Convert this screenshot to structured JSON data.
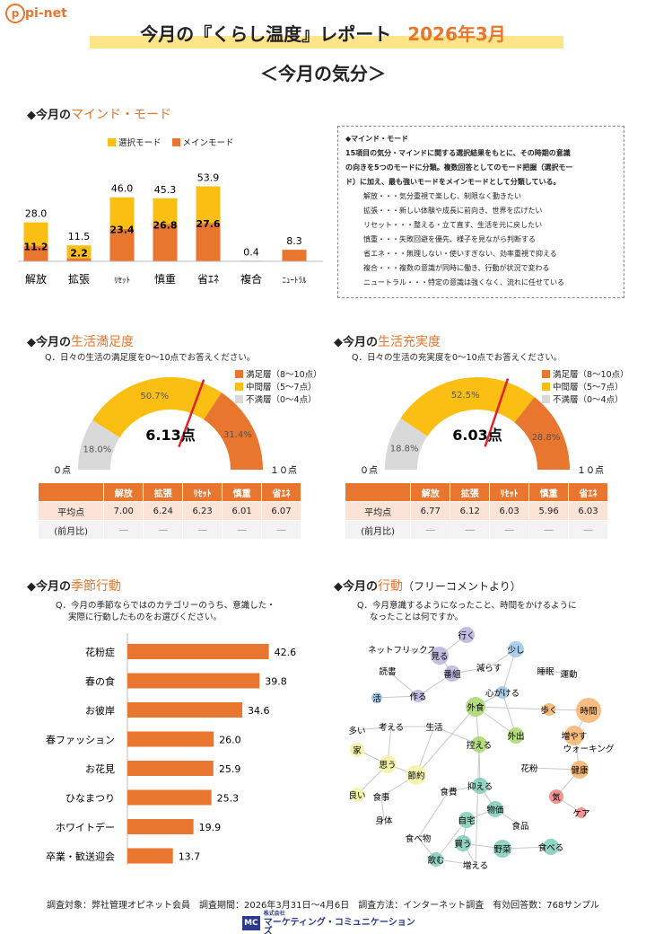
{
  "logo": "pi-net",
  "header": {
    "title": "今月の『くらし温度』レポート",
    "month": "2026年3月",
    "subtitle": "＜今月の気分＞"
  },
  "mind": {
    "heading_prefix": "◆今月の",
    "heading_hl": "マインド・モード",
    "legend": [
      "選択モード",
      "メインモード"
    ],
    "colors": {
      "select": "#fbbf14",
      "main": "#e8762f"
    }
  },
  "chart_data": [
    {
      "type": "bar",
      "stacked": true,
      "categories": [
        "解放",
        "拡張",
        "ﾘｾｯﾄ",
        "慎重",
        "省ｴﾈ",
        "複合",
        "ﾆｭｰﾄﾗﾙ"
      ],
      "series": [
        {
          "name": "メインモード",
          "values": [
            11.2,
            2.2,
            23.4,
            26.8,
            27.6,
            0.4,
            8.3
          ]
        },
        {
          "name": "選択モード",
          "values": [
            16.8,
            9.3,
            22.6,
            18.5,
            26.3,
            0,
            0
          ]
        }
      ],
      "totals": [
        28.0,
        11.5,
        46.0,
        45.3,
        53.9,
        0.4,
        8.3
      ],
      "ylim": [
        0,
        60
      ]
    },
    {
      "type": "pie",
      "title": "生活満足度",
      "slices": [
        {
          "name": "不満層（0～4点）",
          "value": 18.0
        },
        {
          "name": "中間層（5～7点）",
          "value": 50.7
        },
        {
          "name": "満足層（8～10点）",
          "value": 31.4
        }
      ],
      "score": 6.13
    },
    {
      "type": "pie",
      "title": "生活充実度",
      "slices": [
        {
          "name": "不満層（0～4点）",
          "value": 18.8
        },
        {
          "name": "中間層（5～7点）",
          "value": 52.5
        },
        {
          "name": "満足層（8～10点）",
          "value": 28.8
        }
      ],
      "score": 6.03
    },
    {
      "type": "bar",
      "orientation": "horizontal",
      "categories": [
        "花粉症",
        "春の食",
        "お彼岸",
        "春ファッション",
        "お花見",
        "ひなまつり",
        "ホワイトデー",
        "卒業・歓送迎会"
      ],
      "values": [
        42.6,
        39.8,
        34.6,
        26.0,
        25.9,
        25.3,
        19.9,
        13.7
      ],
      "xlim": [
        0,
        50
      ]
    }
  ],
  "infobox": {
    "title": "◆マインド・モード",
    "desc": [
      "15項目の気分・マインドに関する選択結果をもとに、その時期の意識",
      "の向きを5つのモードに分類。複数回答としてのモード把握（選択モー",
      "ド）に加え、最も強いモードをメインモードとして分類している。"
    ],
    "items": [
      "解放・・・気分重視で楽しむ、制限なく動きたい",
      "拡張・・・新しい体験や成長に前向き、世界を広げたい",
      "リセット・・・整える・立て直す、生活を元に戻したい",
      "慎重・・・失敗回避を優先、様子を見ながら判断する",
      "省エネ・・・無理しない・使いすぎない、効率重視で抑える",
      "複合・・・複数の意識が同時に働き、行動が状況で変わる",
      "ニュートラル・・・特定の意識は強くなく、流れに任せている"
    ]
  },
  "satisfaction": {
    "heading_prefix": "◆今月の",
    "heading_hl": "生活満足度",
    "question": "Q．日々の生活の満足度を0～10点でお答えください。",
    "score_label": "6.13点",
    "left": "０点",
    "right": "１０点",
    "pcts": [
      "18.0%",
      "50.7%",
      "31.4%"
    ],
    "table": {
      "headers": [
        "",
        "解放",
        "拡張",
        "ﾘｾｯﾄ",
        "慎重",
        "省ｴﾈ"
      ],
      "row1": [
        "平均点",
        "7.00",
        "6.24",
        "6.23",
        "6.01",
        "6.07"
      ],
      "row2": [
        "(前月比)",
        "―",
        "―",
        "―",
        "―",
        "―"
      ]
    }
  },
  "fulfillment": {
    "heading_prefix": "◆今月の",
    "heading_hl": "生活充実度",
    "question": "Q．日々の生活の充実度を0～10点でお答えください。",
    "score_label": "6.03点",
    "left": "０点",
    "right": "１０点",
    "pcts": [
      "18.8%",
      "52.5%",
      "28.8%"
    ],
    "table": {
      "headers": [
        "",
        "解放",
        "拡張",
        "ﾘｾｯﾄ",
        "慎重",
        "省ｴﾈ"
      ],
      "row1": [
        "平均点",
        "6.77",
        "6.12",
        "6.03",
        "5.96",
        "6.03"
      ],
      "row2": [
        "(前月比)",
        "―",
        "―",
        "―",
        "―",
        "―"
      ]
    }
  },
  "pie_legend": [
    "満足層（8～10点）",
    "中間層（5～7点）",
    "不満層（0～4点）"
  ],
  "pie_colors": {
    "high": "#e8762f",
    "mid": "#fbbf14",
    "low": "#d9d9d9"
  },
  "seasonal": {
    "heading_prefix": "◆今月の",
    "heading_hl": "季節行動",
    "question": [
      "Q．今月の季節ならではのカテゴリーのうち、意識した・",
      "実際に行動したものをお選びください。"
    ]
  },
  "action": {
    "heading_prefix": "◆今月の",
    "heading_hl": "行動",
    "heading_suffix": "（フリーコメントより）",
    "question": [
      "Q．今月意識するようになったこと、時間をかけるように",
      "なったことは何ですか。"
    ],
    "words": [
      {
        "t": "行く",
        "c": "#b9b3dc"
      },
      {
        "t": "ネットフリックス",
        "c": ""
      },
      {
        "t": "見る",
        "c": "#b9b3dc"
      },
      {
        "t": "少し",
        "c": "#9cc4e4"
      },
      {
        "t": "読書",
        "c": ""
      },
      {
        "t": "番組",
        "c": "#b9b3dc"
      },
      {
        "t": "減らす",
        "c": ""
      },
      {
        "t": "睡眠",
        "c": ""
      },
      {
        "t": "運動",
        "c": ""
      },
      {
        "t": "活",
        "c": "#9cc4e4"
      },
      {
        "t": "作る",
        "c": "#b9b3dc"
      },
      {
        "t": "心がける",
        "c": "#9cc4e4"
      },
      {
        "t": "歩く",
        "c": "#f6b26b"
      },
      {
        "t": "時間",
        "c": "#f6b26b"
      },
      {
        "t": "外食",
        "c": "#a8d66b"
      },
      {
        "t": "多い",
        "c": ""
      },
      {
        "t": "考える",
        "c": ""
      },
      {
        "t": "生活",
        "c": ""
      },
      {
        "t": "増やす",
        "c": "#f6b26b"
      },
      {
        "t": "家",
        "c": "#f2f2a0"
      },
      {
        "t": "控える",
        "c": "#a8d66b"
      },
      {
        "t": "外出",
        "c": "#a8d66b"
      },
      {
        "t": "ウォーキング",
        "c": ""
      },
      {
        "t": "思う",
        "c": "#f2f2a0"
      },
      {
        "t": "節約",
        "c": "#f2f2a0"
      },
      {
        "t": "花粉",
        "c": ""
      },
      {
        "t": "健康",
        "c": "#f6b26b"
      },
      {
        "t": "抑える",
        "c": "#80cbb6"
      },
      {
        "t": "食事",
        "c": ""
      },
      {
        "t": "食費",
        "c": ""
      },
      {
        "t": "良い",
        "c": "#f2f2a0"
      },
      {
        "t": "気",
        "c": "#f08080"
      },
      {
        "t": "物価",
        "c": "#80cbb6"
      },
      {
        "t": "身体",
        "c": ""
      },
      {
        "t": "ケア",
        "c": "#f08080"
      },
      {
        "t": "自宅",
        "c": "#80cbb6"
      },
      {
        "t": "食品",
        "c": ""
      },
      {
        "t": "食べ物",
        "c": ""
      },
      {
        "t": "買う",
        "c": "#80cbb6"
      },
      {
        "t": "野菜",
        "c": "#80cbb6"
      },
      {
        "t": "食べる",
        "c": "#80cbb6"
      },
      {
        "t": "飲む",
        "c": "#80cbb6"
      },
      {
        "t": "増える",
        "c": ""
      }
    ]
  },
  "footer": "調査対象：弊社管理オピネット会員　調査期間：2026年3月31日～4月6日　調査方法：インターネット調査　有効回答数：768サンプル",
  "company": {
    "prefix": "株式会社",
    "name": "マーケティング・コミュニケーションズ",
    "mark": "MC"
  }
}
